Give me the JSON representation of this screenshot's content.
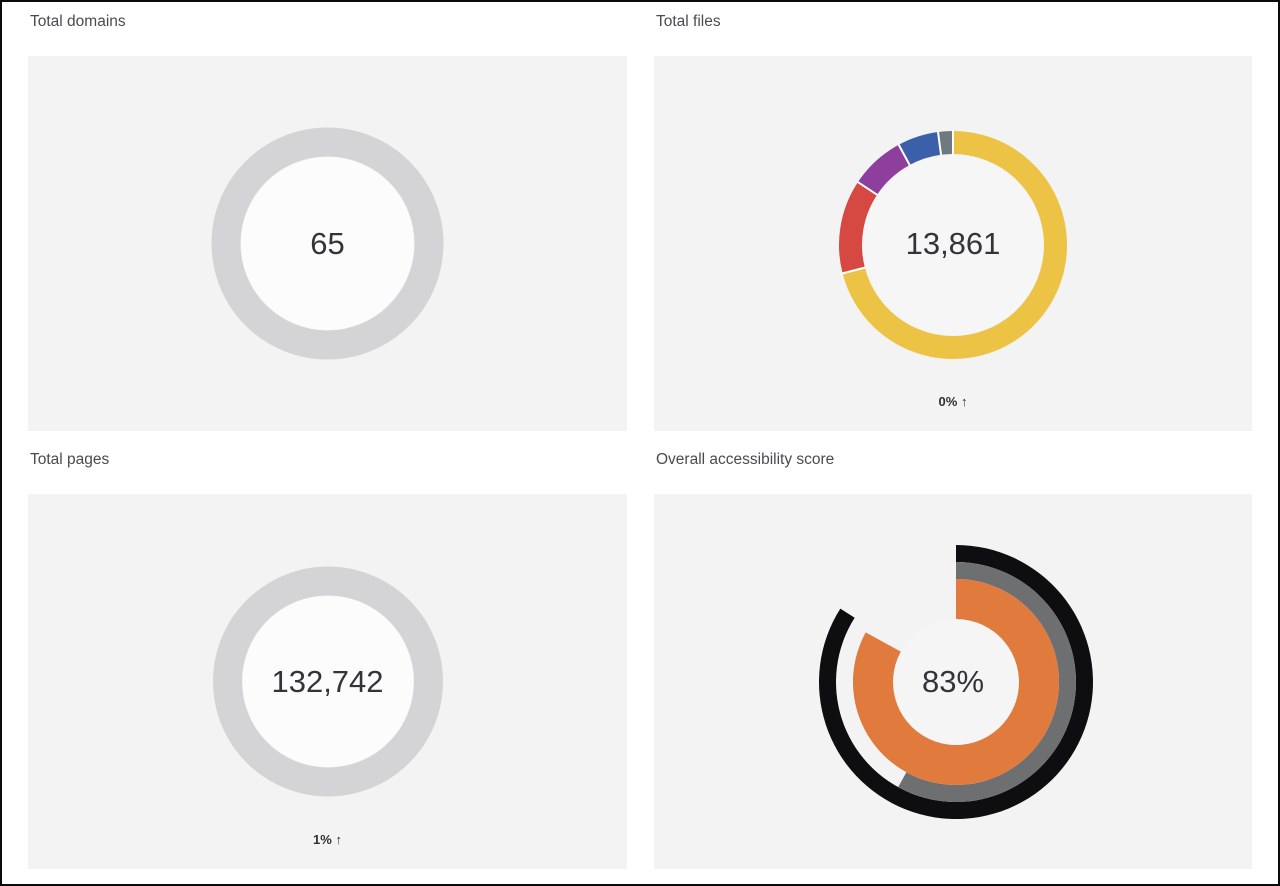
{
  "page": {
    "background_color": "#ffffff",
    "panel_color": "#f3f3f4",
    "border_color": "#0a0a0a"
  },
  "chart_data": [
    {
      "type": "donut",
      "panel": "total-domains",
      "title": "Total domains",
      "center_label": "65",
      "value": 65,
      "series": [
        {
          "name": "domains",
          "percent": 100,
          "color": "#d4d4d6"
        }
      ],
      "render": {
        "center": [
          299.5,
          187.5
        ],
        "outer_radius": 116,
        "thickness": 29,
        "hole_color": "#fcfcfc"
      }
    },
    {
      "type": "donut",
      "panel": "total-files",
      "title": "Total files",
      "center_label": "13,861",
      "value": 13861,
      "delta_label": "0% ↑",
      "delta_direction": "up",
      "series": [
        {
          "name": "yellow-segment",
          "percent": 71.0,
          "color": "#ecc344"
        },
        {
          "name": "red-segment",
          "percent": 13.3,
          "color": "#d64842"
        },
        {
          "name": "purple-segment",
          "percent": 7.8,
          "color": "#8e3f9e"
        },
        {
          "name": "blue-segment",
          "percent": 5.8,
          "color": "#3c5faa"
        },
        {
          "name": "gray-segment",
          "percent": 2.1,
          "color": "#6e7a80"
        }
      ],
      "render": {
        "center": [
          299,
          189
        ],
        "outer_radius": 114,
        "thickness": 23,
        "separator_color": "#ffffff",
        "hole_color": "#f6f6f7"
      }
    },
    {
      "type": "donut",
      "panel": "total-pages",
      "title": "Total pages",
      "center_label": "132,742",
      "value": 132742,
      "delta_label": "1% ↑",
      "delta_direction": "up",
      "series": [
        {
          "name": "pages",
          "percent": 100,
          "color": "#d4d4d6"
        }
      ],
      "render": {
        "center": [
          300,
          187.5
        ],
        "outer_radius": 115,
        "thickness": 29,
        "hole_color": "#fcfcfc"
      }
    },
    {
      "type": "radial-gauge",
      "panel": "overall-accessibility-score",
      "title": "Overall accessibility score",
      "center_label": "83%",
      "value": 83,
      "rings": [
        {
          "name": "outer-black-ring",
          "percent": 84,
          "color": "#0e0d0f",
          "inner_radius": 120,
          "outer_radius": 137
        },
        {
          "name": "middle-gray-ring",
          "percent": 58,
          "color": "#6e6f71",
          "inner_radius": 103,
          "outer_radius": 120
        },
        {
          "name": "inner-orange-ring",
          "percent": 83,
          "color": "#e07a3d",
          "inner_radius": 63,
          "outer_radius": 103
        }
      ],
      "render": {
        "center": [
          302,
          188
        ],
        "hole_color": "#f5f5f6"
      }
    }
  ]
}
